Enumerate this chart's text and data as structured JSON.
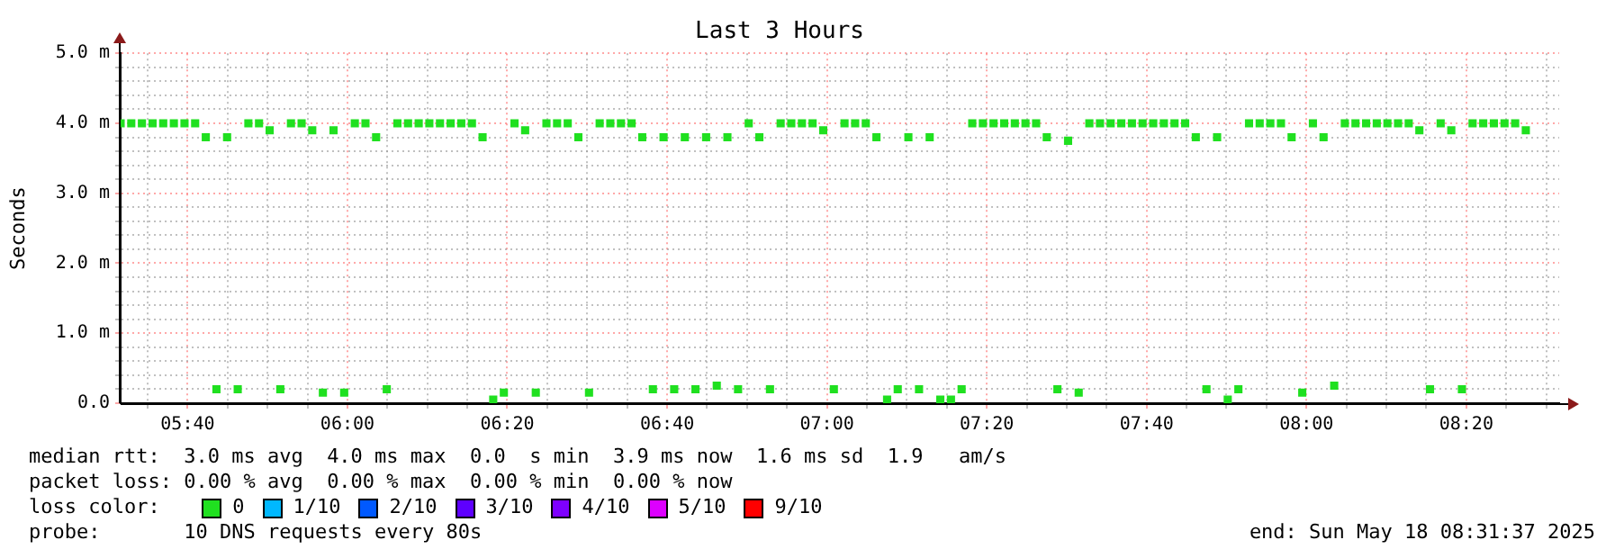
{
  "chart_data": {
    "type": "scatter",
    "title": "Last 3 Hours",
    "ylabel": "Seconds",
    "xlim": [
      5.527,
      8.527
    ],
    "xticks": [
      {
        "value": 5.5833,
        "label": null
      },
      {
        "value": 5.6667,
        "label": "05:40"
      },
      {
        "value": 5.75,
        "label": null
      },
      {
        "value": 5.8333,
        "label": null
      },
      {
        "value": 5.9167,
        "label": null
      },
      {
        "value": 6,
        "label": "06:00"
      },
      {
        "value": 6.0833,
        "label": null
      },
      {
        "value": 6.1667,
        "label": null
      },
      {
        "value": 6.25,
        "label": null
      },
      {
        "value": 6.3333,
        "label": "06:20"
      },
      {
        "value": 6.4167,
        "label": null
      },
      {
        "value": 6.5,
        "label": null
      },
      {
        "value": 6.5833,
        "label": null
      },
      {
        "value": 6.6667,
        "label": "06:40"
      },
      {
        "value": 6.75,
        "label": null
      },
      {
        "value": 6.8333,
        "label": null
      },
      {
        "value": 6.9167,
        "label": null
      },
      {
        "value": 7,
        "label": "07:00"
      },
      {
        "value": 7.0833,
        "label": null
      },
      {
        "value": 7.1667,
        "label": null
      },
      {
        "value": 7.25,
        "label": null
      },
      {
        "value": 7.3333,
        "label": "07:20"
      },
      {
        "value": 7.4167,
        "label": null
      },
      {
        "value": 7.5,
        "label": null
      },
      {
        "value": 7.5833,
        "label": null
      },
      {
        "value": 7.6667,
        "label": "07:40"
      },
      {
        "value": 7.75,
        "label": null
      },
      {
        "value": 7.8333,
        "label": null
      },
      {
        "value": 7.9167,
        "label": null
      },
      {
        "value": 8,
        "label": "08:00"
      },
      {
        "value": 8.0833,
        "label": null
      },
      {
        "value": 8.1667,
        "label": null
      },
      {
        "value": 8.25,
        "label": null
      },
      {
        "value": 8.3333,
        "label": "08:20"
      },
      {
        "value": 8.4167,
        "label": null
      },
      {
        "value": 8.5,
        "label": null
      }
    ],
    "ylim": [
      0,
      5
    ],
    "yticks": [
      {
        "value": 0,
        "label": "0.0"
      },
      {
        "value": 0.2,
        "label": null
      },
      {
        "value": 0.4,
        "label": null
      },
      {
        "value": 0.6,
        "label": null
      },
      {
        "value": 0.8,
        "label": null
      },
      {
        "value": 1,
        "label": "1.0 m"
      },
      {
        "value": 1.2,
        "label": null
      },
      {
        "value": 1.4,
        "label": null
      },
      {
        "value": 1.6,
        "label": null
      },
      {
        "value": 1.8,
        "label": null
      },
      {
        "value": 2,
        "label": "2.0 m"
      },
      {
        "value": 2.2,
        "label": null
      },
      {
        "value": 2.4,
        "label": null
      },
      {
        "value": 2.6,
        "label": null
      },
      {
        "value": 2.8,
        "label": null
      },
      {
        "value": 3,
        "label": "3.0 m"
      },
      {
        "value": 3.2,
        "label": null
      },
      {
        "value": 3.4,
        "label": null
      },
      {
        "value": 3.6,
        "label": null
      },
      {
        "value": 3.8,
        "label": null
      },
      {
        "value": 4,
        "label": "4.0 m"
      },
      {
        "value": 4.2,
        "label": null
      },
      {
        "value": 4.4,
        "label": null
      },
      {
        "value": 4.6,
        "label": null
      },
      {
        "value": 4.8,
        "label": null
      },
      {
        "value": 5,
        "label": "5.0 m"
      }
    ],
    "grid": true,
    "marker": "square",
    "legend": "bottom",
    "legend_title": "loss color:",
    "x": [
      5.527,
      5.5492,
      5.5714,
      5.5936,
      5.6158,
      5.638,
      5.6602,
      5.6824,
      5.7046,
      5.7268,
      5.749,
      5.7712,
      5.7934,
      5.8156,
      5.8378,
      5.86,
      5.8822,
      5.9044,
      5.9266,
      5.9488,
      5.971,
      5.9932,
      6.0154,
      6.0376,
      6.0598,
      6.082,
      6.1042,
      6.1264,
      6.1486,
      6.1708,
      6.193,
      6.2152,
      6.2374,
      6.2596,
      6.2818,
      6.304,
      6.3262,
      6.3484,
      6.3706,
      6.3928,
      6.415,
      6.4372,
      6.4594,
      6.4816,
      6.5038,
      6.526,
      6.5482,
      6.5704,
      6.5926,
      6.6148,
      6.637,
      6.6592,
      6.6814,
      6.7036,
      6.7258,
      6.748,
      6.7702,
      6.7924,
      6.8146,
      6.8368,
      6.859,
      6.8812,
      6.9034,
      6.9256,
      6.9478,
      6.97,
      6.9922,
      7.0144,
      7.0366,
      7.0588,
      7.081,
      7.1032,
      7.1254,
      7.1476,
      7.1698,
      7.192,
      7.2142,
      7.2364,
      7.2586,
      7.2808,
      7.303,
      7.3252,
      7.3474,
      7.3696,
      7.3918,
      7.414,
      7.4362,
      7.4584,
      7.4806,
      7.5028,
      7.525,
      7.5472,
      7.5694,
      7.5916,
      7.6138,
      7.636,
      7.6582,
      7.6804,
      7.7026,
      7.7248,
      7.747,
      7.7692,
      7.7914,
      7.8136,
      7.8358,
      7.858,
      7.8802,
      7.9024,
      7.9246,
      7.9468,
      7.969,
      7.9912,
      8.0134,
      8.0356,
      8.0578,
      8.08,
      8.1022,
      8.1244,
      8.1466,
      8.1688,
      8.191,
      8.2132,
      8.2354,
      8.2576,
      8.2798,
      8.302,
      8.3242,
      8.3464,
      8.3686,
      8.3908,
      8.413,
      8.4352,
      8.4574
    ],
    "series": [
      {
        "name": "0",
        "color": "#20e020",
        "values": [
          4.0,
          4.0,
          4.0,
          4.0,
          4.0,
          4.0,
          4.0,
          4.0,
          3.8,
          0.2,
          3.8,
          0.2,
          4.0,
          4.0,
          3.9,
          0.2,
          4.0,
          4.0,
          3.9,
          0.15,
          3.9,
          0.15,
          4.0,
          4.0,
          3.8,
          0.2,
          4.0,
          4.0,
          4.0,
          4.0,
          4.0,
          4.0,
          4.0,
          4.0,
          3.8,
          0.05,
          0.15,
          4.0,
          3.9,
          0.15,
          4.0,
          4.0,
          4.0,
          3.8,
          0.15,
          4.0,
          4.0,
          4.0,
          4.0,
          3.8,
          0.2,
          3.8,
          0.2,
          3.8,
          0.2,
          3.8,
          0.25,
          3.8,
          0.2,
          4.0,
          3.8,
          0.2,
          4.0,
          4.0,
          4.0,
          4.0,
          3.9,
          0.2,
          4.0,
          4.0,
          4.0,
          3.8,
          0.05,
          0.2,
          3.8,
          0.2,
          3.8,
          0.05,
          0.05,
          0.2,
          4.0,
          4.0,
          4.0,
          4.0,
          4.0,
          4.0,
          4.0,
          3.8,
          0.2,
          3.75,
          0.15,
          4.0,
          4.0,
          4.0,
          4.0,
          4.0,
          4.0,
          4.0,
          4.0,
          4.0,
          4.0,
          3.8,
          0.2,
          3.8,
          0.05,
          0.2,
          4.0,
          4.0,
          4.0,
          4.0,
          3.8,
          0.15,
          4.0,
          3.8,
          0.25,
          4.0,
          4.0,
          4.0,
          4.0,
          4.0,
          4.0,
          4.0,
          3.9,
          0.2,
          4.0,
          3.9,
          0.2,
          4.0,
          4.0,
          4.0,
          4.0,
          4.0,
          3.9
        ]
      },
      {
        "name": "1/10",
        "color": "#00b8ff",
        "values": [
          null,
          null,
          null,
          null,
          null,
          null,
          null,
          null,
          null,
          null,
          null,
          null,
          null,
          null,
          null,
          null,
          null,
          null,
          null,
          null,
          null,
          null,
          null,
          null,
          null,
          null,
          null,
          null,
          null,
          null,
          null,
          null,
          null,
          null,
          null,
          null,
          null,
          null,
          null,
          null,
          null,
          null,
          null,
          null,
          null,
          null,
          null,
          null,
          null,
          null,
          null,
          null,
          null,
          null,
          null,
          null,
          null,
          null,
          null,
          null,
          null,
          null,
          null,
          null,
          null,
          null,
          null,
          null,
          null,
          null,
          null,
          null,
          null,
          null,
          null,
          null,
          null,
          null,
          null,
          null,
          null,
          null,
          null,
          null,
          null,
          null,
          null,
          null,
          null,
          null,
          null,
          null,
          null,
          null,
          null,
          null,
          null,
          null,
          null,
          null,
          null,
          null,
          null,
          null,
          null,
          null,
          null,
          null,
          null,
          null,
          null,
          null,
          null,
          null,
          null,
          null,
          null,
          null,
          null,
          null,
          null,
          null,
          null,
          null,
          null,
          null,
          null,
          null,
          null,
          null,
          null,
          null,
          null
        ]
      },
      {
        "name": "2/10",
        "color": "#0059ff",
        "values": [
          null,
          null,
          null,
          null,
          null,
          null,
          null,
          null,
          null,
          null,
          null,
          null,
          null,
          null,
          null,
          null,
          null,
          null,
          null,
          null,
          null,
          null,
          null,
          null,
          null,
          null,
          null,
          null,
          null,
          null,
          null,
          null,
          null,
          null,
          null,
          null,
          null,
          null,
          null,
          null,
          null,
          null,
          null,
          null,
          null,
          null,
          null,
          null,
          null,
          null,
          null,
          null,
          null,
          null,
          null,
          null,
          null,
          null,
          null,
          null,
          null,
          null,
          null,
          null,
          null,
          null,
          null,
          null,
          null,
          null,
          null,
          null,
          null,
          null,
          null,
          null,
          null,
          null,
          null,
          null,
          null,
          null,
          null,
          null,
          null,
          null,
          null,
          null,
          null,
          null,
          null,
          null,
          null,
          null,
          null,
          null,
          null,
          null,
          null,
          null,
          null,
          null,
          null,
          null,
          null,
          null,
          null,
          null,
          null,
          null,
          null,
          null,
          null,
          null,
          null,
          null,
          null,
          null,
          null,
          null,
          null,
          null,
          null,
          null,
          null,
          null,
          null,
          null,
          null,
          null,
          null,
          null,
          null
        ]
      },
      {
        "name": "3/10",
        "color": "#5e00ff",
        "values": [
          null,
          null,
          null,
          null,
          null,
          null,
          null,
          null,
          null,
          null,
          null,
          null,
          null,
          null,
          null,
          null,
          null,
          null,
          null,
          null,
          null,
          null,
          null,
          null,
          null,
          null,
          null,
          null,
          null,
          null,
          null,
          null,
          null,
          null,
          null,
          null,
          null,
          null,
          null,
          null,
          null,
          null,
          null,
          null,
          null,
          null,
          null,
          null,
          null,
          null,
          null,
          null,
          null,
          null,
          null,
          null,
          null,
          null,
          null,
          null,
          null,
          null,
          null,
          null,
          null,
          null,
          null,
          null,
          null,
          null,
          null,
          null,
          null,
          null,
          null,
          null,
          null,
          null,
          null,
          null,
          null,
          null,
          null,
          null,
          null,
          null,
          null,
          null,
          null,
          null,
          null,
          null,
          null,
          null,
          null,
          null,
          null,
          null,
          null,
          null,
          null,
          null,
          null,
          null,
          null,
          null,
          null,
          null,
          null,
          null,
          null,
          null,
          null,
          null,
          null,
          null,
          null,
          null,
          null,
          null,
          null,
          null,
          null,
          null,
          null,
          null,
          null,
          null,
          null,
          null,
          null,
          null,
          null
        ]
      },
      {
        "name": "4/10",
        "color": "#7e00ff",
        "values": [
          null,
          null,
          null,
          null,
          null,
          null,
          null,
          null,
          null,
          null,
          null,
          null,
          null,
          null,
          null,
          null,
          null,
          null,
          null,
          null,
          null,
          null,
          null,
          null,
          null,
          null,
          null,
          null,
          null,
          null,
          null,
          null,
          null,
          null,
          null,
          null,
          null,
          null,
          null,
          null,
          null,
          null,
          null,
          null,
          null,
          null,
          null,
          null,
          null,
          null,
          null,
          null,
          null,
          null,
          null,
          null,
          null,
          null,
          null,
          null,
          null,
          null,
          null,
          null,
          null,
          null,
          null,
          null,
          null,
          null,
          null,
          null,
          null,
          null,
          null,
          null,
          null,
          null,
          null,
          null,
          null,
          null,
          null,
          null,
          null,
          null,
          null,
          null,
          null,
          null,
          null,
          null,
          null,
          null,
          null,
          null,
          null,
          null,
          null,
          null,
          null,
          null,
          null,
          null,
          null,
          null,
          null,
          null,
          null,
          null,
          null,
          null,
          null,
          null,
          null,
          null,
          null,
          null,
          null,
          null,
          null,
          null,
          null,
          null,
          null,
          null,
          null,
          null,
          null,
          null,
          null,
          null,
          null
        ]
      },
      {
        "name": "5/10",
        "color": "#dd00ff",
        "values": [
          null,
          null,
          null,
          null,
          null,
          null,
          null,
          null,
          null,
          null,
          null,
          null,
          null,
          null,
          null,
          null,
          null,
          null,
          null,
          null,
          null,
          null,
          null,
          null,
          null,
          null,
          null,
          null,
          null,
          null,
          null,
          null,
          null,
          null,
          null,
          null,
          null,
          null,
          null,
          null,
          null,
          null,
          null,
          null,
          null,
          null,
          null,
          null,
          null,
          null,
          null,
          null,
          null,
          null,
          null,
          null,
          null,
          null,
          null,
          null,
          null,
          null,
          null,
          null,
          null,
          null,
          null,
          null,
          null,
          null,
          null,
          null,
          null,
          null,
          null,
          null,
          null,
          null,
          null,
          null,
          null,
          null,
          null,
          null,
          null,
          null,
          null,
          null,
          null,
          null,
          null,
          null,
          null,
          null,
          null,
          null,
          null,
          null,
          null,
          null,
          null,
          null,
          null,
          null,
          null,
          null,
          null,
          null,
          null,
          null,
          null,
          null,
          null,
          null,
          null,
          null,
          null,
          null,
          null,
          null,
          null,
          null,
          null,
          null,
          null,
          null,
          null,
          null,
          null,
          null,
          null,
          null,
          null
        ]
      },
      {
        "name": "9/10",
        "color": "#ff0000",
        "values": [
          null,
          null,
          null,
          null,
          null,
          null,
          null,
          null,
          null,
          null,
          null,
          null,
          null,
          null,
          null,
          null,
          null,
          null,
          null,
          null,
          null,
          null,
          null,
          null,
          null,
          null,
          null,
          null,
          null,
          null,
          null,
          null,
          null,
          null,
          null,
          null,
          null,
          null,
          null,
          null,
          null,
          null,
          null,
          null,
          null,
          null,
          null,
          null,
          null,
          null,
          null,
          null,
          null,
          null,
          null,
          null,
          null,
          null,
          null,
          null,
          null,
          null,
          null,
          null,
          null,
          null,
          null,
          null,
          null,
          null,
          null,
          null,
          null,
          null,
          null,
          null,
          null,
          null,
          null,
          null,
          null,
          null,
          null,
          null,
          null,
          null,
          null,
          null,
          null,
          null,
          null,
          null,
          null,
          null,
          null,
          null,
          null,
          null,
          null,
          null,
          null,
          null,
          null,
          null,
          null,
          null,
          null,
          null,
          null,
          null,
          null,
          null,
          null,
          null,
          null,
          null,
          null,
          null,
          null,
          null,
          null,
          null,
          null,
          null,
          null,
          null,
          null,
          null,
          null,
          null,
          null,
          null,
          null
        ]
      }
    ],
    "annotations": [
      "median rtt:  3.0 ms avg  4.0 ms max  0.0  s min  3.9 ms now  1.6 ms sd  1.9   am/s",
      "packet loss: 0.00 % avg  0.00 % max  0.00 % min  0.00 % now",
      "probe:       10 DNS requests every 80s",
      "end: Sun May 18 08:31:37 2025"
    ]
  }
}
